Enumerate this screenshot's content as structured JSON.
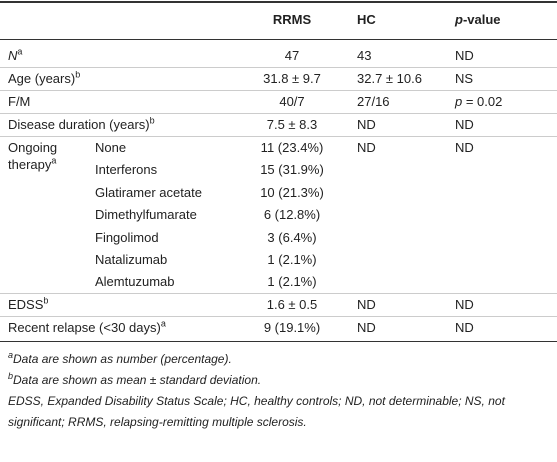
{
  "header": {
    "rrms": "RRMS",
    "hc": "HC",
    "p": [
      {
        "text": "p",
        "style": "italic"
      },
      {
        "text": "-value"
      }
    ]
  },
  "rows": [
    {
      "label": [
        {
          "text": "N",
          "style": "italic"
        },
        {
          "text": "a",
          "style": "sup"
        }
      ],
      "rrms": "47",
      "hc": "43",
      "p": "ND"
    },
    {
      "label": [
        {
          "text": "Age (years)"
        },
        {
          "text": "b",
          "style": "sup"
        }
      ],
      "rrms": "31.8 ± 9.7",
      "hc": "32.7 ± 10.6",
      "p": "NS"
    },
    {
      "label": "F/M",
      "rrms": "40/7",
      "hc": "27/16",
      "p": [
        {
          "text": "p",
          "style": "italic"
        },
        {
          "text": " = 0.02"
        }
      ]
    },
    {
      "label": [
        {
          "text": "Disease duration (years)"
        },
        {
          "text": "b",
          "style": "sup"
        }
      ],
      "rrms": "7.5 ± 8.3",
      "hc": "ND",
      "p": "ND"
    },
    {
      "label": [
        {
          "text": "Ongoing therapy"
        },
        {
          "text": "a",
          "style": "sup"
        }
      ],
      "hc": "ND",
      "p": "ND",
      "sub": [
        {
          "label": "None",
          "rrms": "11 (23.4%)"
        },
        {
          "label": "Interferons",
          "rrms": "15 (31.9%)"
        },
        {
          "label": "Glatiramer acetate",
          "rrms": "10 (21.3%)"
        },
        {
          "label": "Dimethylfumarate",
          "rrms": "6 (12.8%)"
        },
        {
          "label": "Fingolimod",
          "rrms": "3 (6.4%)"
        },
        {
          "label": "Natalizumab",
          "rrms": "1 (2.1%)"
        },
        {
          "label": "Alemtuzumab",
          "rrms": "1 (2.1%)"
        }
      ]
    },
    {
      "label": [
        {
          "text": "EDSS"
        },
        {
          "text": "b",
          "style": "sup"
        }
      ],
      "rrms": "1.6 ± 0.5",
      "hc": "ND",
      "p": "ND"
    },
    {
      "label": "Recent relapse (<30 days)",
      "label_sup": "a",
      "rrms": "9 (19.1%)",
      "hc": "ND",
      "p": "ND"
    }
  ],
  "footnotes": [
    [
      {
        "text": "a",
        "style": "sup"
      },
      {
        "text": "Data are shown as number (percentage)."
      }
    ],
    [
      {
        "text": "b",
        "style": "sup"
      },
      {
        "text": "Data are shown as mean ± standard deviation."
      }
    ],
    [
      {
        "text": "EDSS, Expanded Disability Status Scale; HC, healthy controls; ND, not determinable; NS, not significant; RRMS, relapsing-remitting multiple sclerosis."
      }
    ]
  ]
}
